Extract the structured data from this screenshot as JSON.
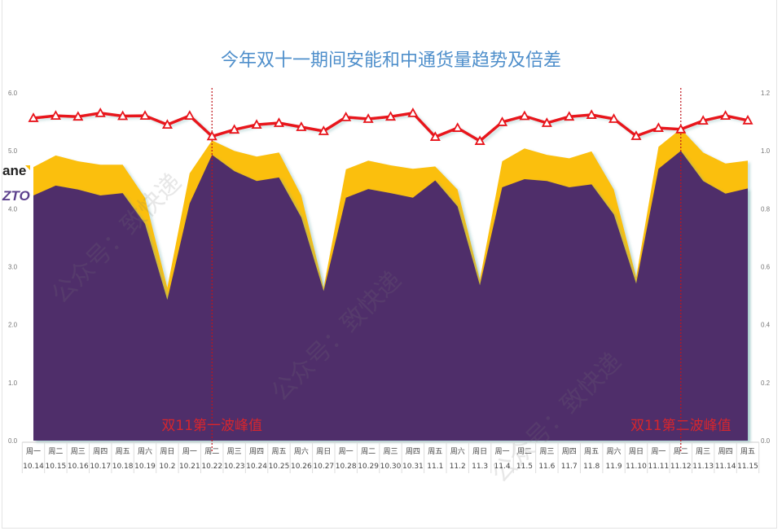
{
  "chart_data": {
    "type": "area",
    "title": "今年双十一期间安能和中通货量趋势及倍差",
    "categories": [
      "10.14",
      "10.15",
      "10.16",
      "10.17",
      "10.18",
      "10.19",
      "10.2",
      "10.21",
      "10.22",
      "10.23",
      "10.24",
      "10.25",
      "10.26",
      "10.27",
      "10.28",
      "10.29",
      "10.30",
      "10.31",
      "11.1",
      "11.2",
      "11.3",
      "11.4",
      "11.5",
      "11.6",
      "11.7",
      "11.8",
      "11.9",
      "11.10",
      "11.11",
      "11.12",
      "11.13",
      "11.14",
      "11.15"
    ],
    "weekdays": [
      "周一",
      "周二",
      "周三",
      "周四",
      "周五",
      "周六",
      "周日",
      "周一",
      "周二",
      "周三",
      "周四",
      "周五",
      "周六",
      "周日",
      "周一",
      "周二",
      "周三",
      "周四",
      "周五",
      "周六",
      "周日",
      "周一",
      "周二",
      "周三",
      "周四",
      "周五",
      "周六",
      "周日",
      "周一",
      "周二",
      "周三",
      "周四",
      "周五"
    ],
    "series": [
      {
        "name": "ane",
        "type": "area",
        "axis": "left",
        "color": "#fbbf0a",
        "values": [
          4.72,
          4.92,
          4.82,
          4.76,
          4.76,
          4.19,
          2.64,
          4.61,
          5.18,
          5.0,
          4.9,
          4.97,
          4.23,
          2.64,
          4.68,
          4.83,
          4.75,
          4.69,
          4.73,
          4.33,
          2.78,
          4.82,
          5.04,
          4.93,
          4.87,
          4.99,
          4.33,
          2.82,
          5.07,
          5.38,
          4.97,
          4.78,
          4.83
        ]
      },
      {
        "name": "ZTO",
        "type": "area",
        "axis": "left",
        "color": "#4f2d6b",
        "values": [
          4.23,
          4.4,
          4.33,
          4.23,
          4.27,
          3.74,
          2.43,
          4.09,
          4.93,
          4.65,
          4.48,
          4.54,
          3.85,
          2.58,
          4.19,
          4.34,
          4.27,
          4.19,
          4.49,
          4.04,
          2.68,
          4.37,
          4.51,
          4.48,
          4.37,
          4.42,
          3.9,
          2.71,
          4.69,
          5.0,
          4.48,
          4.26,
          4.35
        ]
      },
      {
        "name": "倍差",
        "type": "line",
        "axis": "right",
        "color": "#e8141b",
        "values": [
          1.113,
          1.121,
          1.118,
          1.13,
          1.12,
          1.121,
          1.09,
          1.121,
          1.05,
          1.073,
          1.09,
          1.096,
          1.082,
          1.068,
          1.116,
          1.11,
          1.118,
          1.13,
          1.048,
          1.079,
          1.034,
          1.099,
          1.12,
          1.096,
          1.118,
          1.124,
          1.11,
          1.051,
          1.079,
          1.074,
          1.104,
          1.121,
          1.105
        ]
      }
    ],
    "ylim": [
      0,
      6
    ],
    "y_ticks": [
      "0.0",
      "1.0",
      "2.0",
      "3.0",
      "4.0",
      "5.0",
      "6.0"
    ],
    "y2lim": [
      0,
      1.2
    ],
    "y2_ticks": [
      "0.0",
      "0.2",
      "0.4",
      "0.6",
      "0.8",
      "1.0",
      "1.2"
    ],
    "annotations": [
      {
        "category": "10.22",
        "text": "双11第一波峰值"
      },
      {
        "category": "11.12",
        "text": "双11第二波峰值"
      }
    ],
    "legend": {
      "ane": "ane",
      "zto": "ZTO",
      "placement": "left"
    },
    "grid": false
  },
  "watermark": "公众号：致快递"
}
